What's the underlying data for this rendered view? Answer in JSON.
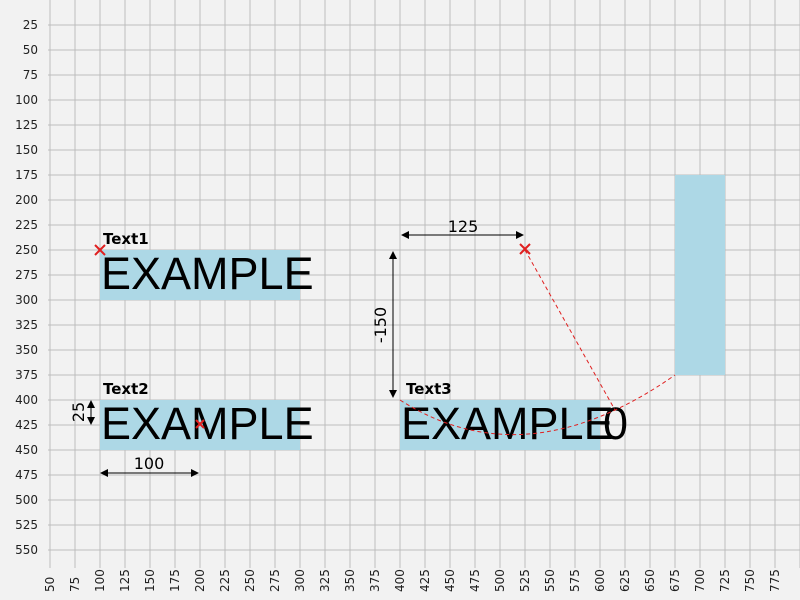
{
  "colors": {
    "background": "#f2f2f2",
    "grid": "#bdbdbd",
    "highlight": "#add8e6",
    "marker": "#e02020",
    "text": "#000000"
  },
  "axes": {
    "x_ticks": [
      "50",
      "75",
      "100",
      "125",
      "150",
      "175",
      "200",
      "225",
      "250",
      "275",
      "300",
      "325",
      "350",
      "375",
      "400",
      "425",
      "450",
      "475",
      "500",
      "525",
      "550",
      "575",
      "600",
      "625",
      "650",
      "675",
      "700",
      "725",
      "750",
      "775"
    ],
    "y_ticks": [
      "25",
      "50",
      "75",
      "100",
      "125",
      "150",
      "175",
      "200",
      "225",
      "250",
      "275",
      "300",
      "325",
      "350",
      "375",
      "400",
      "425",
      "450",
      "475",
      "500",
      "525",
      "550"
    ]
  },
  "items": {
    "text1": {
      "label": "Text1",
      "content": "EXAMPLE"
    },
    "text2": {
      "label": "Text2",
      "content": "EXAMPLE"
    },
    "text3": {
      "label": "Text3",
      "content": "EXAMPLE",
      "suffix": "0"
    }
  },
  "dimensions": {
    "text2_height": "25",
    "text2_width": "100",
    "text3_horizontal": "125",
    "text3_vertical": "-150"
  }
}
